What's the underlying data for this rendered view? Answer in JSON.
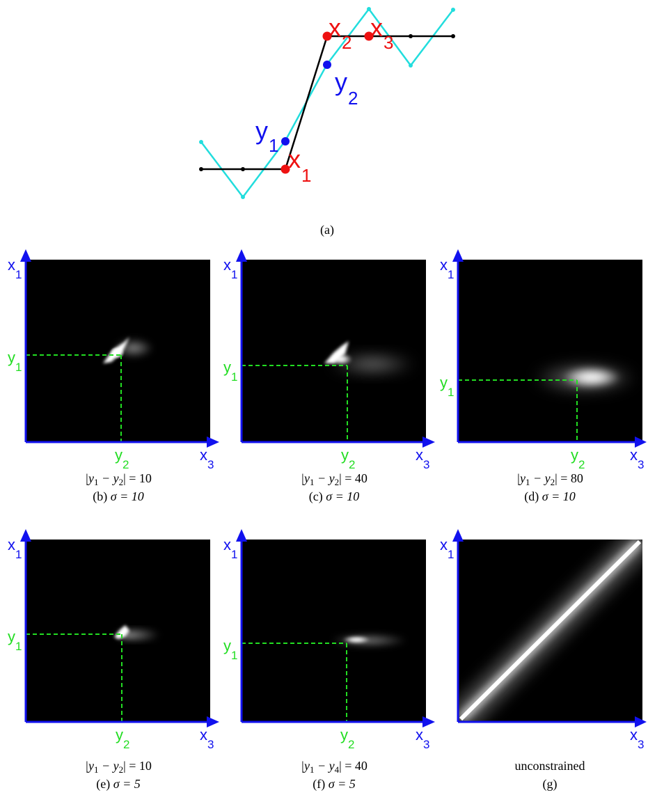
{
  "figure_a": {
    "caption": "(a)",
    "point_labels": {
      "x1": {
        "base": "x",
        "sub": "1"
      },
      "x2": {
        "base": "x",
        "sub": "2"
      },
      "x3": {
        "base": "x",
        "sub": "3"
      },
      "y1": {
        "base": "y",
        "sub": "1"
      },
      "y2": {
        "base": "y",
        "sub": "2"
      }
    },
    "colors": {
      "signal": "#000000",
      "noisy": "#22dddd",
      "x_points": "#ee1111",
      "y_points": "#1111ee"
    }
  },
  "panels": [
    {
      "id": "b",
      "cond_pre": "|y",
      "cond_s1": "1",
      "cond_mid": " − y",
      "cond_s2": "2",
      "cond_post": "| = 10",
      "sub_label": "(b)",
      "sigma_text": "σ = 10",
      "has_guides": true
    },
    {
      "id": "c",
      "cond_pre": "|y",
      "cond_s1": "1",
      "cond_mid": " − y",
      "cond_s2": "2",
      "cond_post": "| = 40",
      "sub_label": "(c)",
      "sigma_text": "σ = 10",
      "has_guides": true
    },
    {
      "id": "d",
      "cond_pre": "|y",
      "cond_s1": "1",
      "cond_mid": " − y",
      "cond_s2": "2",
      "cond_post": "| = 80",
      "sub_label": "(d)",
      "sigma_text": "σ = 10",
      "has_guides": true
    },
    {
      "id": "e",
      "cond_pre": "|y",
      "cond_s1": "1",
      "cond_mid": " − y",
      "cond_s2": "2",
      "cond_post": "| = 10",
      "sub_label": "(e)",
      "sigma_text": "σ = 5",
      "has_guides": true
    },
    {
      "id": "f",
      "cond_pre": "|y",
      "cond_s1": "1",
      "cond_mid": " − y",
      "cond_s2": "4",
      "cond_post": "| = 40",
      "sub_label": "(f)",
      "sigma_text": "σ = 5",
      "has_guides": true
    },
    {
      "id": "g",
      "cond_text": "unconstrained",
      "sub_label": "(g)",
      "has_guides": false
    }
  ],
  "axis_labels": {
    "vertical": {
      "base": "x",
      "sub": "1"
    },
    "horizontal": {
      "base": "x",
      "sub": "3"
    },
    "guide_v": {
      "base": "y",
      "sub": "1"
    },
    "guide_h": {
      "base": "y",
      "sub": "2"
    }
  },
  "colors": {
    "axis": "#1111ee",
    "guide": "#22dd22",
    "panel_bg": "#000000"
  }
}
